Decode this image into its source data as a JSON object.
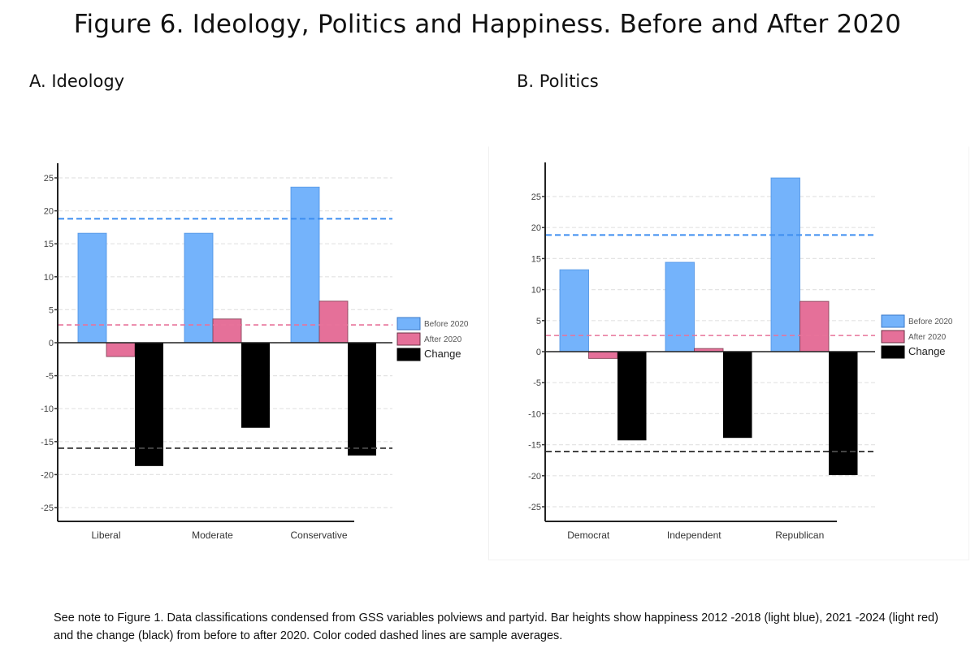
{
  "figure_title": "Figure 6. Ideology, Politics and Happiness. Before and After 2020",
  "note": "See note to Figure 1. Data classifications condensed from GSS variables    polviews and partyid. Bar heights show happiness 2012    -2018 (light blue), 2021 -2024 (light red) and the change (black) from before to after 2020.     Color coded dashed lines are sample averages.",
  "colors": {
    "before": "#74b3fb",
    "before_stroke": "#4a90e2",
    "after": "#e57099",
    "after_stroke": "#7a3a4e",
    "change": "#000000",
    "avg_before": "#3d8ef0",
    "avg_after": "#e8739a",
    "avg_change": "#444444",
    "grid": "#e4e4e4"
  },
  "chart_data": [
    {
      "type": "bar",
      "panel_title": "A. Ideology",
      "categories": [
        "Liberal",
        "Moderate",
        "Conservative"
      ],
      "series": [
        {
          "name": "Before 2020",
          "legend_label": "Before 2020",
          "values": [
            16.6,
            16.6,
            23.6
          ]
        },
        {
          "name": "After 2020",
          "legend_label": "After 2020",
          "values": [
            -2.1,
            3.6,
            6.3
          ]
        },
        {
          "name": "Change",
          "legend_label": "Change",
          "values": [
            -18.7,
            -12.9,
            -17.1
          ]
        }
      ],
      "averages": {
        "before": 18.8,
        "after": 2.7,
        "change": -16.0
      },
      "yticks": [
        25,
        20,
        15,
        10,
        5,
        0,
        -5,
        -10,
        -15,
        -20,
        -25
      ],
      "ytick_labels": [
        "25",
        "20",
        "15",
        "10",
        "5",
        "0",
        "-5",
        "-10",
        "-15",
        "-20",
        "-25"
      ],
      "ylim": [
        -27.3,
        27.4
      ],
      "grid": true,
      "legend": "right"
    },
    {
      "type": "bar",
      "panel_title": "B. Politics",
      "categories": [
        "Democrat",
        "Independent",
        "Republican"
      ],
      "series": [
        {
          "name": "Before 2020",
          "legend_label": "Before 2020",
          "values": [
            13.2,
            14.4,
            28.0
          ]
        },
        {
          "name": "After 2020",
          "legend_label": "After 2020",
          "values": [
            -1.1,
            0.5,
            8.1
          ]
        },
        {
          "name": "Change",
          "legend_label": "Change",
          "values": [
            -14.3,
            -13.9,
            -19.9
          ]
        }
      ],
      "averages": {
        "before": 18.8,
        "after": 2.6,
        "change": -16.1
      },
      "yticks": [
        25,
        20,
        15,
        10,
        5,
        0,
        -5,
        -10,
        -15,
        -20,
        -25
      ],
      "ytick_labels": [
        "25",
        "20",
        "15",
        "10",
        "5",
        "0",
        "-5",
        "-10",
        "-15",
        "-20",
        "-25"
      ],
      "ylim": [
        -27.3,
        30.5
      ],
      "grid": true,
      "legend": "right"
    }
  ]
}
